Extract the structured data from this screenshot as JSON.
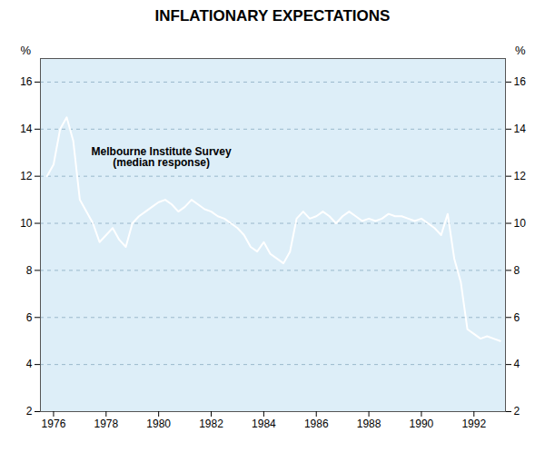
{
  "chart_data": {
    "type": "line",
    "title": "INFLATIONARY EXPECTATIONS",
    "annotation": "Melbourne Institute Survey\n(median response)",
    "y_label": "%",
    "y2_label": "%",
    "x": [
      1975.75,
      1976.0,
      1976.25,
      1976.5,
      1976.75,
      1977.0,
      1977.25,
      1977.5,
      1977.75,
      1978.0,
      1978.25,
      1978.5,
      1978.75,
      1979.0,
      1979.25,
      1979.5,
      1979.75,
      1980.0,
      1980.25,
      1980.5,
      1980.75,
      1981.0,
      1981.25,
      1981.5,
      1981.75,
      1982.0,
      1982.25,
      1982.5,
      1982.75,
      1983.0,
      1983.25,
      1983.5,
      1983.75,
      1984.0,
      1984.25,
      1984.5,
      1984.75,
      1985.0,
      1985.25,
      1985.5,
      1985.75,
      1986.0,
      1986.25,
      1986.5,
      1986.75,
      1987.0,
      1987.25,
      1987.5,
      1987.75,
      1988.0,
      1988.25,
      1988.5,
      1988.75,
      1989.0,
      1989.25,
      1989.5,
      1989.75,
      1990.0,
      1990.25,
      1990.5,
      1990.75,
      1991.0,
      1991.25,
      1991.5,
      1991.75,
      1992.0,
      1992.25,
      1992.5,
      1992.75,
      1993.0
    ],
    "values": [
      12.0,
      12.5,
      14.0,
      14.5,
      13.5,
      11.0,
      10.5,
      10.0,
      9.2,
      9.5,
      9.8,
      9.3,
      9.0,
      10.0,
      10.3,
      10.5,
      10.7,
      10.9,
      11.0,
      10.8,
      10.5,
      10.7,
      11.0,
      10.8,
      10.6,
      10.5,
      10.3,
      10.2,
      10.0,
      9.8,
      9.5,
      9.0,
      8.8,
      9.2,
      8.7,
      8.5,
      8.3,
      8.8,
      10.2,
      10.5,
      10.2,
      10.3,
      10.5,
      10.3,
      10.0,
      10.3,
      10.5,
      10.3,
      10.1,
      10.2,
      10.1,
      10.2,
      10.4,
      10.3,
      10.3,
      10.2,
      10.1,
      10.2,
      10.0,
      9.8,
      9.5,
      10.4,
      8.5,
      7.5,
      5.5,
      5.3,
      5.1,
      5.2,
      5.1,
      5.0
    ],
    "color": "#ffffff",
    "xlim": [
      1975.5,
      1993.2
    ],
    "xticks": [
      1976,
      1978,
      1980,
      1982,
      1984,
      1986,
      1988,
      1990,
      1992
    ],
    "ylim": [
      2,
      17
    ],
    "yticks": [
      2,
      4,
      6,
      8,
      10,
      12,
      14,
      16
    ],
    "y2lim": [
      2,
      17
    ],
    "y2ticks": [
      2,
      4,
      6,
      8,
      10,
      12,
      14,
      16
    ],
    "grid": true
  }
}
